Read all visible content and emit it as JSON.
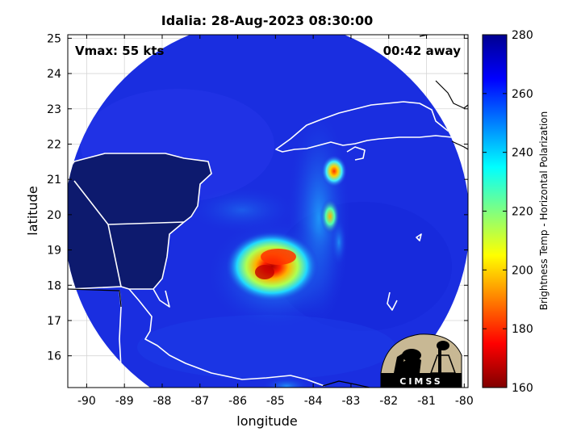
{
  "title": "Idalia: 28-Aug-2023 08:30:00",
  "annotations": {
    "vmax": "Vmax: 55 kts",
    "away": "00:42 away"
  },
  "chart_data": {
    "type": "heatmap",
    "title": "Idalia: 28-Aug-2023 08:30:00",
    "xlabel": "longitude",
    "ylabel": "latitude",
    "xlim": [
      -90.5,
      -79.9
    ],
    "ylim": [
      15.1,
      25.1
    ],
    "x_ticks": [
      -90,
      -89,
      -88,
      -87,
      -86,
      -85,
      -84,
      -83,
      -82,
      -81,
      -80
    ],
    "x_tick_labels": [
      "-90",
      "-89",
      "-88",
      "-87",
      "-86",
      "-85",
      "-84",
      "-83",
      "-82",
      "-81",
      "-80"
    ],
    "y_ticks": [
      16,
      17,
      18,
      19,
      20,
      21,
      22,
      23,
      24,
      25
    ],
    "y_tick_labels": [
      "16",
      "17",
      "18",
      "19",
      "20",
      "21",
      "22",
      "23",
      "24",
      "25"
    ],
    "grid": true,
    "colorbar": {
      "label": "Brightness Temp - Horizontal Polarization",
      "range": [
        160,
        280
      ],
      "ticks": [
        160,
        180,
        200,
        220,
        240,
        260,
        280
      ],
      "tick_labels": [
        "160",
        "180",
        "200",
        "220",
        "240",
        "260",
        "280"
      ],
      "colormap": "jet"
    },
    "swath": {
      "shape": "circle",
      "center_lon": -85.2,
      "center_lat": 19.9,
      "background_tb": 268
    },
    "features": [
      {
        "name": "core",
        "lon": -85.1,
        "lat": 18.6,
        "min_tb": 175
      },
      {
        "name": "eastern band",
        "lon": -83.4,
        "lat": 21.2,
        "min_tb": 188
      },
      {
        "name": "eastern band",
        "lon": -83.6,
        "lat": 20.0,
        "min_tb": 205
      }
    ],
    "logo": "CIMSS"
  },
  "colors": {
    "swath_background": "#1a2ee0",
    "land": "#0d1a6e",
    "coastline": "#ffffff",
    "outside_coastline": "#000000"
  }
}
